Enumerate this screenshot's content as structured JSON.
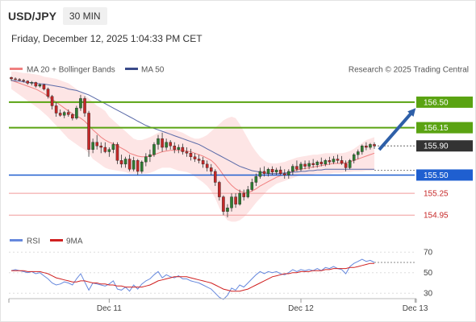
{
  "header": {
    "symbol": "USD/JPY",
    "timeframe": "30 MIN",
    "datetime": "Friday, December 12, 2025 1:04:33 PM CET"
  },
  "legend": {
    "ma20": "MA 20 + Bollinger Bands",
    "ma50": "MA 50",
    "research": "Research © 2025 Trading Central",
    "rsi": "RSI",
    "rsi_ma": "9MA"
  },
  "colors": {
    "ma20": "#f08080",
    "bollinger_fill": "#fde2e2",
    "ma50": "#5a6aa8",
    "bull": "#2e7d32",
    "bear": "#c62828",
    "resistance": "#5aa312",
    "support": "#1f5fd0",
    "target_line": "#f19a9a",
    "arrow": "#2e5fa8",
    "current": "#333333",
    "rsi_line": "#6688dd",
    "rsi_ma": "#d02020"
  },
  "levels": [
    {
      "label": "156.50",
      "value": 156.5,
      "kind": "resistance"
    },
    {
      "label": "156.15",
      "value": 156.15,
      "kind": "resistance"
    },
    {
      "label": "155.90",
      "value": 155.9,
      "kind": "current"
    },
    {
      "label": "155.50",
      "value": 155.5,
      "kind": "support"
    },
    {
      "label": "155.25",
      "value": 155.25,
      "kind": "target"
    },
    {
      "label": "154.95",
      "value": 154.95,
      "kind": "target"
    }
  ],
  "x_axis": {
    "ticks": [
      {
        "label": "Dec 11",
        "index": 24
      },
      {
        "label": "Dec 12",
        "index": 71
      },
      {
        "label": "Dec 13",
        "index": 99
      }
    ]
  },
  "rsi_axis": {
    "ticks": [
      70,
      50,
      30
    ]
  },
  "chart_data": {
    "type": "candlestick",
    "title": "USD/JPY",
    "price_range": [
      154.82,
      156.72
    ],
    "rsi_range": [
      20,
      78
    ],
    "current_price": 155.9,
    "ohlc": [
      [
        156.84,
        156.85,
        156.79,
        156.82
      ],
      [
        156.82,
        156.84,
        156.8,
        156.81
      ],
      [
        156.81,
        156.83,
        156.79,
        156.8
      ],
      [
        156.8,
        156.82,
        156.77,
        156.79
      ],
      [
        156.79,
        156.8,
        156.74,
        156.76
      ],
      [
        156.76,
        156.79,
        156.73,
        156.77
      ],
      [
        156.77,
        156.78,
        156.7,
        156.72
      ],
      [
        156.72,
        156.76,
        156.7,
        156.74
      ],
      [
        156.74,
        156.75,
        156.66,
        156.68
      ],
      [
        156.68,
        156.7,
        156.55,
        156.58
      ],
      [
        156.58,
        156.6,
        156.4,
        156.45
      ],
      [
        156.45,
        156.5,
        156.3,
        156.35
      ],
      [
        156.35,
        156.4,
        156.3,
        156.32
      ],
      [
        156.32,
        156.38,
        156.28,
        156.36
      ],
      [
        156.36,
        156.4,
        156.3,
        156.33
      ],
      [
        156.33,
        156.35,
        156.25,
        156.28
      ],
      [
        156.28,
        156.45,
        156.26,
        156.42
      ],
      [
        156.42,
        156.6,
        156.38,
        156.55
      ],
      [
        156.55,
        156.58,
        156.3,
        156.35
      ],
      [
        156.35,
        156.38,
        155.75,
        155.85
      ],
      [
        155.85,
        156.0,
        155.8,
        155.95
      ],
      [
        155.95,
        156.05,
        155.85,
        155.9
      ],
      [
        155.9,
        155.95,
        155.8,
        155.88
      ],
      [
        155.88,
        155.95,
        155.8,
        155.82
      ],
      [
        155.82,
        155.88,
        155.75,
        155.85
      ],
      [
        155.85,
        155.95,
        155.8,
        155.92
      ],
      [
        155.92,
        155.95,
        155.65,
        155.7
      ],
      [
        155.7,
        155.78,
        155.6,
        155.65
      ],
      [
        155.65,
        155.75,
        155.6,
        155.72
      ],
      [
        155.72,
        155.78,
        155.55,
        155.58
      ],
      [
        155.58,
        155.75,
        155.55,
        155.7
      ],
      [
        155.7,
        155.72,
        155.5,
        155.55
      ],
      [
        155.55,
        155.7,
        155.52,
        155.68
      ],
      [
        155.68,
        155.8,
        155.62,
        155.75
      ],
      [
        155.75,
        155.85,
        155.68,
        155.78
      ],
      [
        155.78,
        155.95,
        155.75,
        155.92
      ],
      [
        155.92,
        156.05,
        155.85,
        156.0
      ],
      [
        156.0,
        156.08,
        155.82,
        155.88
      ],
      [
        155.88,
        156.0,
        155.84,
        155.95
      ],
      [
        155.95,
        155.98,
        155.85,
        155.9
      ],
      [
        155.9,
        155.95,
        155.8,
        155.85
      ],
      [
        155.85,
        155.92,
        155.8,
        155.88
      ],
      [
        155.88,
        155.93,
        155.78,
        155.82
      ],
      [
        155.82,
        155.88,
        155.75,
        155.8
      ],
      [
        155.8,
        155.86,
        155.7,
        155.75
      ],
      [
        155.75,
        155.8,
        155.68,
        155.72
      ],
      [
        155.72,
        155.78,
        155.66,
        155.7
      ],
      [
        155.7,
        155.75,
        155.6,
        155.65
      ],
      [
        155.65,
        155.7,
        155.55,
        155.6
      ],
      [
        155.6,
        155.65,
        155.5,
        155.55
      ],
      [
        155.55,
        155.58,
        155.35,
        155.4
      ],
      [
        155.4,
        155.42,
        155.15,
        155.2
      ],
      [
        155.2,
        155.22,
        154.95,
        155.0
      ],
      [
        155.0,
        155.1,
        154.92,
        155.05
      ],
      [
        155.05,
        155.25,
        155.0,
        155.2
      ],
      [
        155.2,
        155.25,
        155.05,
        155.1
      ],
      [
        155.1,
        155.3,
        155.08,
        155.25
      ],
      [
        155.25,
        155.3,
        155.15,
        155.2
      ],
      [
        155.2,
        155.35,
        155.18,
        155.3
      ],
      [
        155.3,
        155.45,
        155.28,
        155.4
      ],
      [
        155.4,
        155.52,
        155.35,
        155.48
      ],
      [
        155.48,
        155.6,
        155.45,
        155.55
      ],
      [
        155.55,
        155.62,
        155.48,
        155.52
      ],
      [
        155.52,
        155.6,
        155.48,
        155.58
      ],
      [
        155.58,
        155.62,
        155.5,
        155.54
      ],
      [
        155.54,
        155.6,
        155.5,
        155.57
      ],
      [
        155.57,
        155.62,
        155.5,
        155.52
      ],
      [
        155.52,
        155.58,
        155.45,
        155.5
      ],
      [
        155.5,
        155.58,
        155.45,
        155.55
      ],
      [
        155.55,
        155.65,
        155.5,
        155.62
      ],
      [
        155.62,
        155.7,
        155.55,
        155.58
      ],
      [
        155.58,
        155.68,
        155.55,
        155.65
      ],
      [
        155.65,
        155.7,
        155.58,
        155.62
      ],
      [
        155.62,
        155.7,
        155.58,
        155.66
      ],
      [
        155.66,
        155.72,
        155.6,
        155.64
      ],
      [
        155.64,
        155.7,
        155.6,
        155.68
      ],
      [
        155.68,
        155.74,
        155.62,
        155.65
      ],
      [
        155.65,
        155.72,
        155.62,
        155.7
      ],
      [
        155.7,
        155.75,
        155.64,
        155.68
      ],
      [
        155.68,
        155.76,
        155.65,
        155.72
      ],
      [
        155.72,
        155.78,
        155.66,
        155.7
      ],
      [
        155.7,
        155.76,
        155.64,
        155.66
      ],
      [
        155.66,
        155.7,
        155.55,
        155.6
      ],
      [
        155.6,
        155.72,
        155.58,
        155.7
      ],
      [
        155.7,
        155.8,
        155.66,
        155.78
      ],
      [
        155.78,
        155.85,
        155.72,
        155.82
      ],
      [
        155.82,
        155.92,
        155.78,
        155.9
      ],
      [
        155.9,
        155.95,
        155.84,
        155.88
      ],
      [
        155.88,
        155.94,
        155.85,
        155.92
      ],
      [
        155.92,
        155.95,
        155.86,
        155.9
      ]
    ],
    "ma20": [
      156.8,
      156.78,
      156.76,
      156.74,
      156.72,
      156.7,
      156.68,
      156.65,
      156.62,
      156.58,
      156.54,
      156.5,
      156.46,
      156.42,
      156.38,
      156.34,
      156.31,
      156.28,
      156.24,
      156.18,
      156.12,
      156.07,
      156.02,
      155.98,
      155.95,
      155.93,
      155.9,
      155.87,
      155.84,
      155.8,
      155.78,
      155.76,
      155.75,
      155.75,
      155.76,
      155.78,
      155.8,
      155.82,
      155.83,
      155.84,
      155.84,
      155.84,
      155.84,
      155.83,
      155.82,
      155.8,
      155.78,
      155.76,
      155.73,
      155.7,
      155.65,
      155.58,
      155.5,
      155.42,
      155.36,
      155.31,
      155.28,
      155.26,
      155.26,
      155.28,
      155.31,
      155.35,
      155.38,
      155.41,
      155.44,
      155.47,
      155.49,
      155.51,
      155.53,
      155.55,
      155.57,
      155.58,
      155.59,
      155.6,
      155.61,
      155.62,
      155.63,
      155.64,
      155.65,
      155.66,
      155.66,
      155.66,
      155.67,
      155.68,
      155.7,
      155.72,
      155.74,
      155.76,
      155.78,
      155.8
    ],
    "bb_upper": [
      156.92,
      156.92,
      156.91,
      156.9,
      156.9,
      156.89,
      156.88,
      156.87,
      156.85,
      156.84,
      156.83,
      156.82,
      156.8,
      156.78,
      156.76,
      156.72,
      156.68,
      156.64,
      156.6,
      156.55,
      156.5,
      156.45,
      156.42,
      156.38,
      156.3,
      156.25,
      156.2,
      156.15,
      156.1,
      156.05,
      156.0,
      155.98,
      155.98,
      156.0,
      156.02,
      156.05,
      156.08,
      156.1,
      156.12,
      156.12,
      156.12,
      156.1,
      156.08,
      156.05,
      156.02,
      156.0,
      156.0,
      156.02,
      156.05,
      156.1,
      156.15,
      156.2,
      156.25,
      156.28,
      156.3,
      156.28,
      156.2,
      156.1,
      156.0,
      155.9,
      155.82,
      155.75,
      155.7,
      155.67,
      155.66,
      155.66,
      155.67,
      155.68,
      155.7,
      155.72,
      155.74,
      155.75,
      155.76,
      155.77,
      155.78,
      155.78,
      155.79,
      155.8,
      155.8,
      155.8,
      155.8,
      155.8,
      155.81,
      155.83,
      155.86,
      155.9,
      155.94,
      155.98,
      156.0,
      156.02
    ],
    "bb_lower": [
      156.68,
      156.64,
      156.6,
      156.56,
      156.52,
      156.48,
      156.44,
      156.4,
      156.35,
      156.3,
      156.24,
      156.18,
      156.12,
      156.06,
      156.0,
      155.96,
      155.92,
      155.88,
      155.85,
      155.8,
      155.72,
      155.68,
      155.64,
      155.6,
      155.58,
      155.57,
      155.56,
      155.55,
      155.54,
      155.52,
      155.52,
      155.52,
      155.52,
      155.52,
      155.53,
      155.55,
      155.58,
      155.6,
      155.6,
      155.6,
      155.58,
      155.56,
      155.55,
      155.54,
      155.52,
      155.48,
      155.44,
      155.4,
      155.35,
      155.28,
      155.18,
      155.05,
      154.95,
      154.88,
      154.86,
      154.86,
      154.88,
      154.92,
      154.98,
      155.05,
      155.12,
      155.18,
      155.24,
      155.3,
      155.34,
      155.38,
      155.4,
      155.42,
      155.44,
      155.46,
      155.48,
      155.5,
      155.5,
      155.5,
      155.51,
      155.52,
      155.52,
      155.52,
      155.52,
      155.53,
      155.53,
      155.53,
      155.54,
      155.54,
      155.55,
      155.55,
      155.55,
      155.56,
      155.56,
      155.57
    ],
    "ma50": [
      156.8,
      156.79,
      156.79,
      156.78,
      156.77,
      156.77,
      156.76,
      156.75,
      156.75,
      156.74,
      156.73,
      156.72,
      156.71,
      156.7,
      156.68,
      156.67,
      156.66,
      156.64,
      156.62,
      156.6,
      156.57,
      156.54,
      156.51,
      156.48,
      156.45,
      156.42,
      156.39,
      156.36,
      156.33,
      156.3,
      156.27,
      156.24,
      156.21,
      156.18,
      156.16,
      156.14,
      156.12,
      156.1,
      156.08,
      156.06,
      156.04,
      156.02,
      156.0,
      155.98,
      155.96,
      155.94,
      155.92,
      155.89,
      155.86,
      155.83,
      155.8,
      155.77,
      155.74,
      155.71,
      155.68,
      155.65,
      155.62,
      155.6,
      155.58,
      155.56,
      155.55,
      155.54,
      155.53,
      155.52,
      155.52,
      155.52,
      155.52,
      155.53,
      155.53,
      155.54,
      155.54,
      155.55,
      155.55,
      155.56,
      155.56,
      155.57,
      155.57,
      155.58,
      155.58,
      155.58,
      155.58,
      155.58,
      155.58,
      155.58,
      155.58,
      155.58,
      155.58,
      155.58,
      155.58,
      155.58
    ],
    "rsi": [
      52,
      53,
      52,
      51,
      50,
      51,
      49,
      50,
      47,
      44,
      40,
      38,
      39,
      41,
      40,
      38,
      44,
      49,
      41,
      33,
      40,
      39,
      38,
      37,
      39,
      42,
      34,
      33,
      36,
      32,
      38,
      34,
      39,
      42,
      44,
      48,
      51,
      45,
      48,
      46,
      45,
      47,
      44,
      44,
      42,
      41,
      40,
      38,
      36,
      34,
      30,
      26,
      24,
      28,
      35,
      33,
      38,
      36,
      40,
      44,
      48,
      51,
      49,
      51,
      50,
      51,
      49,
      48,
      50,
      53,
      51,
      53,
      52,
      53,
      52,
      54,
      52,
      55,
      54,
      56,
      54,
      53,
      49,
      56,
      59,
      61,
      63,
      61,
      62,
      60
    ],
    "rsi_ma": [
      52,
      52,
      52,
      52,
      51,
      51,
      51,
      51,
      50,
      49,
      47,
      45,
      44,
      43,
      42,
      41,
      41,
      42,
      42,
      41,
      40,
      40,
      39,
      39,
      38,
      38,
      37,
      37,
      36,
      36,
      36,
      36,
      36,
      37,
      38,
      40,
      42,
      43,
      44,
      45,
      46,
      46,
      46,
      46,
      45,
      44,
      43,
      42,
      41,
      40,
      38,
      36,
      34,
      33,
      32,
      32,
      32,
      33,
      34,
      36,
      38,
      40,
      42,
      44,
      46,
      47,
      48,
      49,
      49,
      50,
      50,
      51,
      51,
      51,
      52,
      52,
      52,
      53,
      53,
      54,
      54,
      54,
      54,
      55,
      55,
      56,
      57,
      58,
      59,
      59
    ]
  }
}
